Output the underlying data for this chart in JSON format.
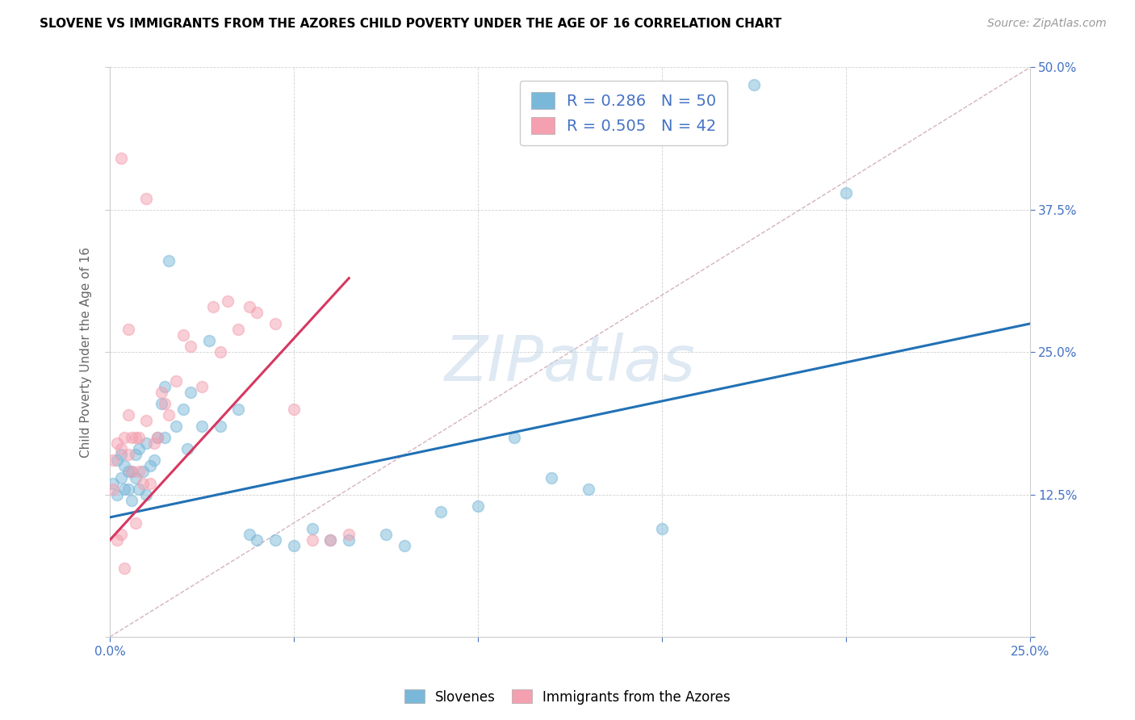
{
  "title": "SLOVENE VS IMMIGRANTS FROM THE AZORES CHILD POVERTY UNDER THE AGE OF 16 CORRELATION CHART",
  "source": "Source: ZipAtlas.com",
  "ylabel": "Child Poverty Under the Age of 16",
  "xlim": [
    0.0,
    0.25
  ],
  "ylim": [
    -0.02,
    0.52
  ],
  "plot_ylim": [
    0.0,
    0.5
  ],
  "xticks": [
    0.0,
    0.05,
    0.1,
    0.15,
    0.2,
    0.25
  ],
  "yticks": [
    0.0,
    0.125,
    0.25,
    0.375,
    0.5
  ],
  "xticklabels": [
    "0.0%",
    "",
    "",
    "",
    "",
    "25.0%"
  ],
  "yticklabels_right": [
    "",
    "12.5%",
    "25.0%",
    "37.5%",
    "50.0%"
  ],
  "blue_color": "#7ab8d9",
  "pink_color": "#f4a0b0",
  "trend_blue": "#2171b5",
  "trend_pink": "#d63861",
  "ref_line_color": "#c8a0b0",
  "watermark_text": "ZIPatlas",
  "slovenes_label": "Slovenes",
  "azores_label": "Immigrants from the Azores",
  "blue_trend_x0": 0.0,
  "blue_trend_y0": 0.105,
  "blue_trend_x1": 0.25,
  "blue_trend_y1": 0.275,
  "pink_trend_x0": 0.0,
  "pink_trend_y0": 0.085,
  "pink_trend_x1": 0.065,
  "pink_trend_y1": 0.315,
  "blue_scatter_x": [
    0.001,
    0.002,
    0.002,
    0.003,
    0.003,
    0.004,
    0.004,
    0.005,
    0.005,
    0.006,
    0.006,
    0.007,
    0.007,
    0.008,
    0.008,
    0.009,
    0.01,
    0.01,
    0.011,
    0.012,
    0.013,
    0.014,
    0.015,
    0.015,
    0.016,
    0.018,
    0.02,
    0.021,
    0.022,
    0.025,
    0.027,
    0.03,
    0.035,
    0.038,
    0.04,
    0.045,
    0.05,
    0.055,
    0.06,
    0.065,
    0.075,
    0.08,
    0.09,
    0.1,
    0.11,
    0.12,
    0.13,
    0.15,
    0.175,
    0.2
  ],
  "blue_scatter_y": [
    0.135,
    0.155,
    0.125,
    0.14,
    0.16,
    0.13,
    0.15,
    0.145,
    0.13,
    0.145,
    0.12,
    0.16,
    0.14,
    0.165,
    0.13,
    0.145,
    0.17,
    0.125,
    0.15,
    0.155,
    0.175,
    0.205,
    0.175,
    0.22,
    0.33,
    0.185,
    0.2,
    0.165,
    0.215,
    0.185,
    0.26,
    0.185,
    0.2,
    0.09,
    0.085,
    0.085,
    0.08,
    0.095,
    0.085,
    0.085,
    0.09,
    0.08,
    0.11,
    0.115,
    0.175,
    0.14,
    0.13,
    0.095,
    0.485,
    0.39
  ],
  "pink_scatter_x": [
    0.001,
    0.001,
    0.002,
    0.002,
    0.003,
    0.003,
    0.004,
    0.004,
    0.005,
    0.005,
    0.006,
    0.006,
    0.007,
    0.007,
    0.008,
    0.008,
    0.009,
    0.01,
    0.011,
    0.012,
    0.013,
    0.014,
    0.015,
    0.016,
    0.018,
    0.02,
    0.022,
    0.025,
    0.028,
    0.03,
    0.032,
    0.035,
    0.038,
    0.04,
    0.045,
    0.05,
    0.055,
    0.06,
    0.065,
    0.003,
    0.005,
    0.01
  ],
  "pink_scatter_y": [
    0.155,
    0.13,
    0.17,
    0.085,
    0.165,
    0.09,
    0.175,
    0.06,
    0.195,
    0.16,
    0.175,
    0.145,
    0.175,
    0.1,
    0.175,
    0.145,
    0.135,
    0.19,
    0.135,
    0.17,
    0.175,
    0.215,
    0.205,
    0.195,
    0.225,
    0.265,
    0.255,
    0.22,
    0.29,
    0.25,
    0.295,
    0.27,
    0.29,
    0.285,
    0.275,
    0.2,
    0.085,
    0.085,
    0.09,
    0.42,
    0.27,
    0.385
  ]
}
